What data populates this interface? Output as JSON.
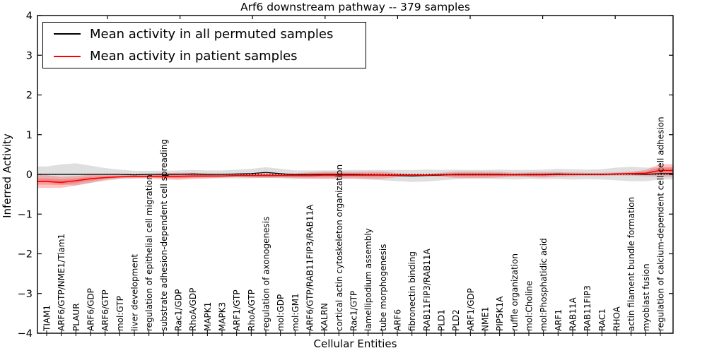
{
  "colors": {
    "permuted_line": "#000000",
    "patient_line": "#ff0000",
    "permuted_band": "#7f7f7f",
    "patient_band": "#ff3030",
    "zero_line": "#000000",
    "background": "#ffffff",
    "text": "#000000"
  },
  "chart_data": {
    "type": "line",
    "title": "Arf6 downstream pathway -- 379 samples",
    "xlabel": "Cellular Entities",
    "ylabel": "Inferred Activity",
    "ylim": [
      -4,
      4
    ],
    "ytick_labels": [
      "4",
      "3",
      "2",
      "1",
      "0",
      "−1",
      "−2",
      "−3",
      "−4"
    ],
    "ytick_values": [
      4,
      3,
      2,
      1,
      0,
      -1,
      -2,
      -3,
      -4
    ],
    "grid": false,
    "legend_position": "upper left",
    "zero_reference_line": 0,
    "categories": [
      "TIAM1",
      "ARF6/GTP/NME1/Tiam1",
      "PLAUR",
      "ARF6/GDP",
      "ARF6/GTP",
      "mol:GTP",
      "liver development",
      "regulation of epithelial cell migration",
      "substrate adhesion-dependent cell spreading",
      "Rac1/GDP",
      "RhoA/GDP",
      "MAPK1",
      "MAPK3",
      "ARF1/GTP",
      "RhoA/GTP",
      "regulation of axonogenesis",
      "mol:GDP",
      "mol:GM1",
      "ARF6/GTP/RAB11FIP3/RAB11A",
      "KALRN",
      "cortical actin cytoskeleton organization",
      "Rac1/GTP",
      "lamellipodium assembly",
      "tube morphogenesis",
      "ARF6",
      "fibronectin binding",
      "RAB11FIP3/RAB11A",
      "PLD1",
      "PLD2",
      "ARF1/GDP",
      "NME1",
      "PIP5K1A",
      "ruffle organization",
      "mol:Choline",
      "mol:Phosphatidic acid",
      "ARF1",
      "RAB11A",
      "RAB11FIP3",
      "RAC1",
      "RHOA",
      "actin filament bundle formation",
      "myoblast fusion",
      "regulation of calcium-dependent cell-cell adhesion"
    ],
    "series": [
      {
        "name": "Mean activity in all permuted samples",
        "color": "#000000",
        "values": [
          0.0,
          0.0,
          0.0,
          0.0,
          0.0,
          0.0,
          -0.01,
          0.0,
          0.0,
          0.0,
          0.01,
          0.0,
          0.0,
          0.01,
          0.02,
          0.05,
          0.02,
          -0.01,
          0.0,
          0.0,
          0.0,
          0.0,
          -0.01,
          -0.02,
          -0.03,
          -0.04,
          -0.03,
          -0.02,
          0.0,
          0.0,
          0.0,
          0.0,
          -0.01,
          0.0,
          0.0,
          0.01,
          0.0,
          0.0,
          0.0,
          0.01,
          0.01,
          0.0,
          0.02
        ],
        "band_halfwidth": [
          0.2,
          0.25,
          0.28,
          0.22,
          0.16,
          0.12,
          0.1,
          0.09,
          0.09,
          0.1,
          0.1,
          0.1,
          0.1,
          0.11,
          0.12,
          0.13,
          0.12,
          0.11,
          0.1,
          0.1,
          0.1,
          0.11,
          0.12,
          0.13,
          0.14,
          0.15,
          0.15,
          0.13,
          0.12,
          0.11,
          0.11,
          0.12,
          0.12,
          0.11,
          0.12,
          0.13,
          0.13,
          0.12,
          0.13,
          0.16,
          0.18,
          0.17,
          0.15
        ]
      },
      {
        "name": "Mean activity in patient samples",
        "color": "#ff0000",
        "values": [
          -0.18,
          -0.2,
          -0.16,
          -0.11,
          -0.08,
          -0.06,
          -0.05,
          -0.05,
          -0.05,
          -0.05,
          -0.04,
          -0.04,
          -0.04,
          -0.03,
          -0.03,
          -0.03,
          -0.03,
          -0.03,
          -0.03,
          -0.02,
          -0.02,
          -0.02,
          -0.02,
          -0.02,
          -0.02,
          -0.02,
          -0.02,
          -0.01,
          -0.01,
          -0.01,
          -0.01,
          -0.01,
          -0.01,
          -0.01,
          -0.01,
          0.0,
          0.0,
          0.0,
          0.0,
          0.01,
          0.02,
          0.03,
          0.1
        ],
        "band_halfwidth": [
          0.16,
          0.14,
          0.12,
          0.1,
          0.06,
          0.04,
          0.04,
          0.05,
          0.08,
          0.09,
          0.08,
          0.06,
          0.04,
          0.04,
          0.05,
          0.06,
          0.05,
          0.06,
          0.08,
          0.09,
          0.09,
          0.08,
          0.09,
          0.09,
          0.05,
          0.03,
          0.03,
          0.05,
          0.08,
          0.08,
          0.08,
          0.07,
          0.05,
          0.06,
          0.07,
          0.06,
          0.05,
          0.04,
          0.04,
          0.04,
          0.05,
          0.08,
          0.16
        ]
      }
    ]
  }
}
